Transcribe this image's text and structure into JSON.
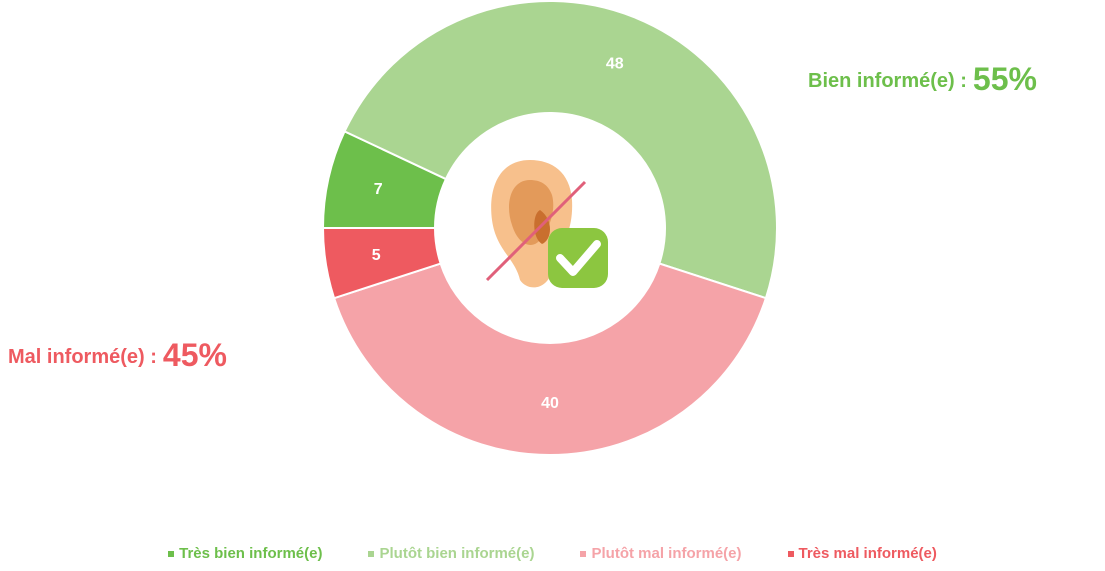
{
  "chart_data": {
    "type": "donut",
    "categories": [
      "Très bien informé(e)",
      "Plutôt bien informé(e)",
      "Plutôt mal informé(e)",
      "Très mal informé(e)"
    ],
    "values": [
      7,
      48,
      40,
      5
    ],
    "colors": [
      "#6dbf4b",
      "#aad591",
      "#f5a3a8",
      "#ee5a60"
    ],
    "annotations": [
      {
        "text": "Bien informé(e) :",
        "value": "55%",
        "color": "#6dbf4b"
      },
      {
        "text": "Mal informé(e) :",
        "value": "45%",
        "color": "#ee5a60"
      }
    ]
  }
}
